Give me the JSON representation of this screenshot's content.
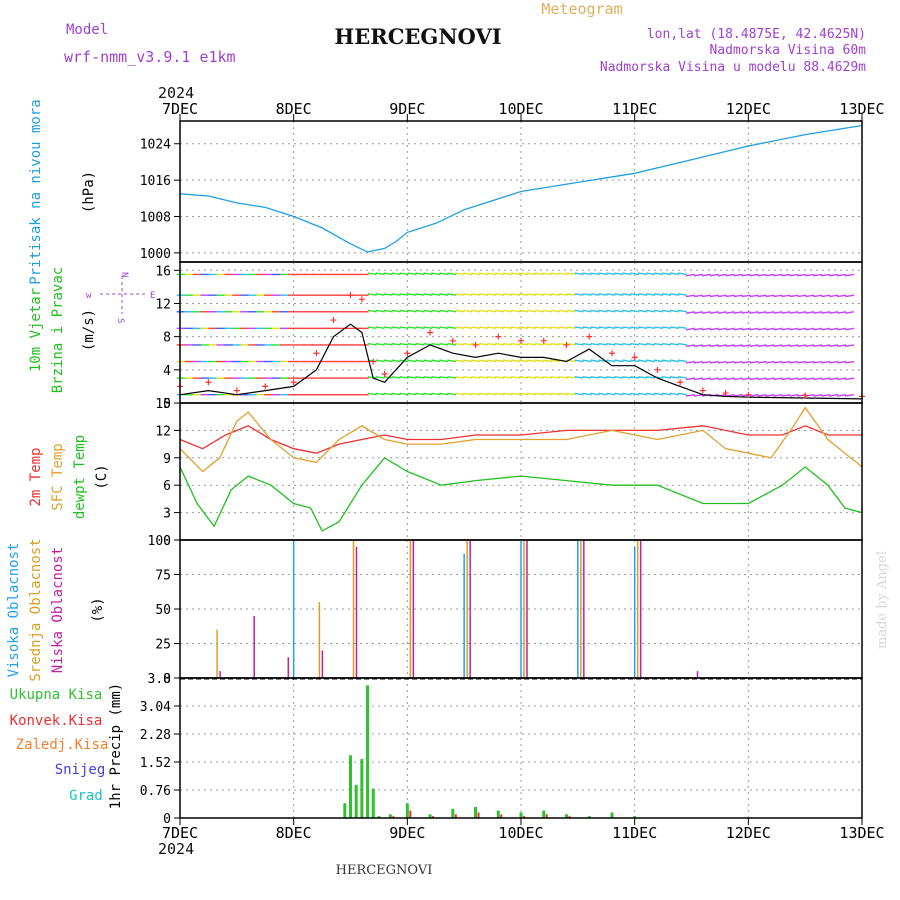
{
  "header": {
    "model_label": "Model",
    "model_name": "wrf-nmm_v3.9.1 e1km",
    "station": "HERCEGNOVI",
    "meteogram_label": "Meteogram",
    "lonlat": "lon,lat (18.4875E, 42.4625N)",
    "altitude": "Nadmorska Visina 60m",
    "model_altitude": "Nadmorska Visina u modelu 88.4629m",
    "year": "2024",
    "footer_station": "HERCEGNOVI",
    "credit": "made by Angel"
  },
  "colors": {
    "pressure": "#1ea0e0",
    "speed": "#000000",
    "gust": "#ff3030",
    "temp2m": "#ee3030",
    "sfc_temp": "#e0a030",
    "dewpt": "#20c020",
    "high_cloud": "#20a0f0",
    "mid_cloud": "#d8a020",
    "low_cloud": "#c020a0",
    "total_precip": "#30c030",
    "conv_precip": "#ee3030",
    "frz_precip": "#f08030",
    "snow": "#4040e0",
    "grad": "#20c0c0",
    "header_purple": "#a040d0",
    "header_gold": "#e0b060"
  },
  "axis": {
    "x_ticks": [
      "7DEC",
      "8DEC",
      "9DEC",
      "10DEC",
      "11DEC",
      "12DEC",
      "13DEC"
    ]
  },
  "chart_data": [
    {
      "type": "line",
      "id": "pressure",
      "ylabel": [
        "Pritisak na nivou mora",
        "(hPa)"
      ],
      "ylim": [
        998,
        1029
      ],
      "yticks": [
        1000,
        1008,
        1016,
        1024
      ],
      "x_range_days": [
        0,
        6
      ],
      "series": [
        {
          "name": "Pritisak na nivou mora",
          "x": [
            0,
            0.25,
            0.5,
            0.75,
            1.0,
            1.25,
            1.5,
            1.65,
            1.8,
            1.9,
            2.0,
            2.25,
            2.5,
            2.75,
            3.0,
            3.5,
            4.0,
            4.5,
            5.0,
            5.5,
            6.0
          ],
          "y": [
            1013,
            1012.5,
            1011,
            1010,
            1008,
            1005.5,
            1002,
            1000.2,
            1001,
            1002.5,
            1004.5,
            1006.5,
            1009.5,
            1011.5,
            1013.5,
            1015.5,
            1017.5,
            1020.5,
            1023.5,
            1026,
            1028
          ]
        }
      ]
    },
    {
      "type": "line",
      "id": "wind",
      "ylabel": [
        "10m Vjetar",
        "Brzina i Pravac",
        "(m/s)"
      ],
      "ylim": [
        0,
        17
      ],
      "yticks": [
        0,
        4,
        8,
        12,
        16
      ],
      "x_range_days": [
        0,
        6
      ],
      "series": [
        {
          "name": "speed",
          "x": [
            0,
            0.25,
            0.5,
            0.75,
            1.0,
            1.2,
            1.35,
            1.5,
            1.6,
            1.7,
            1.8,
            2.0,
            2.2,
            2.4,
            2.6,
            2.8,
            3.0,
            3.2,
            3.4,
            3.6,
            3.8,
            4.0,
            4.2,
            4.4,
            4.6,
            4.8,
            5.0,
            5.5,
            6.0
          ],
          "y": [
            1,
            1.5,
            1,
            1.5,
            2,
            4,
            8,
            9.5,
            8.5,
            3,
            2.5,
            5.5,
            7,
            6,
            5.5,
            6,
            5.5,
            5.5,
            5,
            6.5,
            4.5,
            4.5,
            3,
            2,
            1,
            0.8,
            0.7,
            0.6,
            0.5
          ]
        },
        {
          "name": "gust",
          "x": [
            0,
            0.25,
            0.5,
            0.75,
            1.0,
            1.2,
            1.35,
            1.5,
            1.6,
            1.7,
            1.8,
            2.0,
            2.2,
            2.4,
            2.6,
            2.8,
            3.0,
            3.2,
            3.4,
            3.6,
            3.8,
            4.0,
            4.2,
            4.4,
            4.6,
            4.8,
            5.0,
            5.5,
            6.0
          ],
          "y": [
            2,
            2.5,
            1.5,
            2,
            2.5,
            6,
            10,
            13,
            12.5,
            5,
            3.5,
            6,
            8.5,
            7.5,
            7,
            8,
            7.5,
            7.5,
            7,
            8,
            6,
            5.5,
            4,
            2.5,
            1.5,
            1.2,
            1,
            0.9,
            0.8
          ]
        }
      ]
    },
    {
      "type": "line",
      "id": "temperature",
      "ylabel": [
        "2m Temp",
        "SFC Temp",
        "dewpt Temp",
        "(C)"
      ],
      "ylim": [
        0,
        15
      ],
      "yticks": [
        0,
        3,
        6,
        9,
        12,
        15
      ],
      "x_range_days": [
        0,
        6
      ],
      "series": [
        {
          "name": "2m Temp",
          "x": [
            0,
            0.2,
            0.4,
            0.6,
            0.8,
            1.0,
            1.2,
            1.4,
            1.6,
            1.8,
            2.0,
            2.3,
            2.6,
            3.0,
            3.4,
            3.8,
            4.2,
            4.6,
            5.0,
            5.3,
            5.5,
            5.7,
            6.0
          ],
          "y": [
            11,
            10,
            11.5,
            12.5,
            11,
            10,
            9.5,
            10.5,
            11,
            11.5,
            11,
            11,
            11.5,
            11.5,
            12,
            12,
            12,
            12.5,
            11.5,
            11.5,
            12.5,
            11.5,
            11.5
          ]
        },
        {
          "name": "SFC Temp",
          "x": [
            0,
            0.2,
            0.35,
            0.5,
            0.6,
            0.8,
            1.0,
            1.2,
            1.4,
            1.6,
            1.8,
            2.0,
            2.3,
            2.6,
            3.0,
            3.4,
            3.8,
            4.2,
            4.6,
            4.8,
            5.0,
            5.2,
            5.4,
            5.5,
            5.7,
            6.0
          ],
          "y": [
            10,
            7.5,
            9,
            13,
            14,
            11,
            9,
            8.5,
            11,
            12.5,
            11,
            10.5,
            10.5,
            11,
            11,
            11,
            12,
            11,
            12,
            10,
            9.5,
            9,
            12.5,
            14.5,
            11,
            8
          ]
        },
        {
          "name": "dewpt Temp",
          "x": [
            0,
            0.15,
            0.3,
            0.45,
            0.6,
            0.8,
            1.0,
            1.15,
            1.25,
            1.4,
            1.6,
            1.8,
            2.0,
            2.3,
            2.6,
            3.0,
            3.4,
            3.8,
            4.2,
            4.6,
            5.0,
            5.3,
            5.5,
            5.7,
            5.85,
            6.0
          ],
          "y": [
            8,
            4,
            1.5,
            5.5,
            7,
            6,
            4,
            3.5,
            1,
            2,
            6,
            9,
            7.5,
            6,
            6.5,
            7,
            6.5,
            6,
            6,
            4,
            4,
            6,
            8,
            6,
            3.5,
            3
          ]
        }
      ]
    },
    {
      "type": "bar",
      "id": "cloud",
      "ylabel": [
        "Visoka Oblacnost",
        "Srednja Oblacnost",
        "Niska Oblacnost",
        "(%)"
      ],
      "ylim": [
        0,
        100
      ],
      "yticks": [
        0,
        25,
        50,
        75,
        100
      ],
      "x_range_days": [
        0,
        6
      ],
      "series": [
        {
          "name": "Visoka Oblacnost",
          "x": [
            0,
            0.2,
            0.4,
            0.6,
            0.8,
            1.0,
            2.5,
            3.0,
            3.5,
            4.0,
            4.5
          ],
          "y": [
            0,
            0,
            0,
            0,
            0,
            100,
            90,
            100,
            100,
            95,
            0
          ]
        },
        {
          "name": "Srednja Oblacnost",
          "x": [
            0,
            0.3,
            0.6,
            0.9,
            1.2,
            1.5,
            2.0,
            2.5,
            3.0,
            3.5,
            4.0,
            4.5,
            5.0
          ],
          "y": [
            0,
            35,
            0,
            0,
            55,
            100,
            100,
            100,
            100,
            100,
            100,
            0,
            0
          ]
        },
        {
          "name": "Niska Oblacnost",
          "x": [
            0,
            0.3,
            0.6,
            0.9,
            1.2,
            1.5,
            2.0,
            2.5,
            3.0,
            3.5,
            4.0,
            4.5,
            5.0
          ],
          "y": [
            0,
            5,
            45,
            15,
            20,
            95,
            100,
            100,
            100,
            100,
            100,
            5,
            0
          ]
        }
      ]
    },
    {
      "type": "bar",
      "id": "precip",
      "ylabel": [
        "1hr Precip (mm)"
      ],
      "legend": [
        "Ukupna Kisa",
        "Konvek.Kisa",
        "Zaledj.Kisa",
        "Snijeg",
        "Grad"
      ],
      "ylim": [
        0,
        3.8
      ],
      "yticks": [
        0,
        0.76,
        1.52,
        2.28,
        3.04,
        3.8
      ],
      "x_range_days": [
        0,
        6
      ],
      "series": [
        {
          "name": "Ukupna Kisa",
          "x": [
            1.45,
            1.5,
            1.55,
            1.6,
            1.65,
            1.7,
            1.75,
            1.85,
            2.0,
            2.2,
            2.4,
            2.6,
            2.8,
            3.0,
            3.2,
            3.4,
            3.6,
            3.8,
            4.0
          ],
          "y": [
            0.4,
            1.7,
            0.9,
            1.6,
            3.6,
            0.8,
            0.05,
            0.1,
            0.4,
            0.1,
            0.25,
            0.3,
            0.2,
            0.15,
            0.2,
            0.1,
            0.05,
            0.15,
            0.05
          ]
        },
        {
          "name": "Konvek.Kisa",
          "x": [
            1.85,
            2.0,
            2.2,
            2.4,
            2.6,
            2.8,
            3.0,
            3.2,
            3.4
          ],
          "y": [
            0.05,
            0.2,
            0.05,
            0.1,
            0.15,
            0.1,
            0.05,
            0.1,
            0.05
          ]
        }
      ]
    }
  ]
}
